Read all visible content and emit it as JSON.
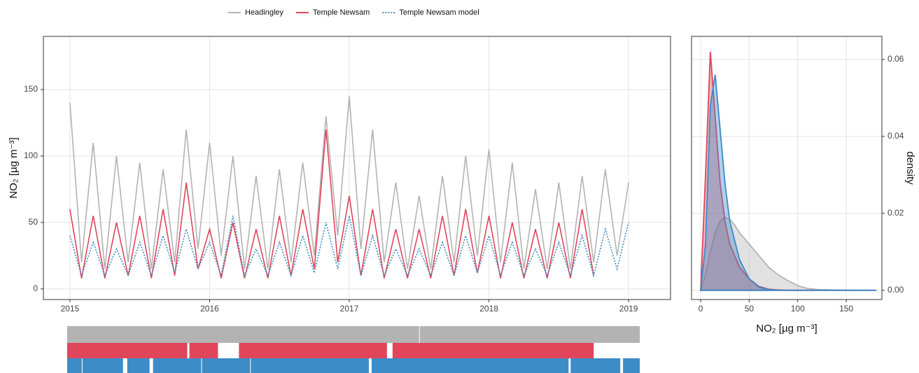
{
  "chart_data": [
    {
      "type": "line",
      "ylabel": "NO₂ [µg m⁻³]",
      "x": [
        2015,
        2015.083,
        2015.167,
        2015.25,
        2015.333,
        2015.417,
        2015.5,
        2015.583,
        2015.667,
        2015.75,
        2015.833,
        2015.917,
        2016,
        2016.083,
        2016.167,
        2016.25,
        2016.333,
        2016.417,
        2016.5,
        2016.583,
        2016.667,
        2016.75,
        2016.833,
        2016.917,
        2017,
        2017.083,
        2017.167,
        2017.25,
        2017.333,
        2017.417,
        2017.5,
        2017.583,
        2017.667,
        2017.75,
        2017.833,
        2017.917,
        2018,
        2018.083,
        2018.167,
        2018.25,
        2018.333,
        2018.417,
        2018.5,
        2018.583,
        2018.667,
        2018.75,
        2018.833,
        2018.917,
        2019
      ],
      "series": [
        {
          "name": "Headingley",
          "color": "#b3b3b3",
          "values": [
            140,
            20,
            110,
            15,
            100,
            20,
            95,
            15,
            90,
            20,
            120,
            30,
            110,
            25,
            100,
            15,
            85,
            15,
            90,
            20,
            95,
            25,
            130,
            40,
            145,
            30,
            120,
            20,
            80,
            15,
            70,
            15,
            85,
            20,
            100,
            25,
            105,
            20,
            95,
            15,
            75,
            15,
            80,
            15,
            85,
            20,
            90,
            25,
            80
          ]
        },
        {
          "name": "Temple Newsam",
          "color": "#e0455a",
          "values": [
            60,
            8,
            55,
            8,
            50,
            10,
            55,
            8,
            60,
            10,
            80,
            15,
            45,
            8,
            50,
            8,
            45,
            8,
            55,
            10,
            60,
            15,
            120,
            20,
            70,
            10,
            60,
            8,
            45,
            8,
            45,
            8,
            55,
            10,
            60,
            12,
            55,
            8,
            50,
            8,
            45,
            8,
            50,
            8,
            60,
            10,
            null,
            null,
            null
          ]
        },
        {
          "name": "Temple Newsam model",
          "color": "#3c8cc8",
          "dash": "dotted",
          "values": [
            40,
            10,
            35,
            10,
            30,
            10,
            35,
            10,
            40,
            12,
            45,
            15,
            35,
            10,
            55,
            10,
            30,
            10,
            35,
            10,
            40,
            12,
            50,
            15,
            55,
            10,
            40,
            10,
            30,
            10,
            30,
            10,
            35,
            10,
            40,
            12,
            40,
            10,
            35,
            10,
            30,
            10,
            35,
            10,
            40,
            10,
            45,
            15,
            50
          ]
        }
      ],
      "xlim": [
        2014.81,
        2019.3
      ],
      "xticks": [
        2015,
        2016,
        2017,
        2018,
        2019
      ],
      "ylim": [
        -8,
        190
      ],
      "yticks": [
        0,
        50,
        100,
        150
      ],
      "grid": true,
      "legend": "top"
    },
    {
      "type": "density",
      "xlabel": "NO₂ [µg m⁻³]",
      "y2label": "density",
      "x": [
        0,
        5,
        10,
        15,
        20,
        25,
        30,
        35,
        40,
        50,
        60,
        70,
        80,
        90,
        100,
        110,
        120,
        140,
        160,
        180
      ],
      "series": [
        {
          "color": "#b3b3b3",
          "values": [
            0,
            0.004,
            0.01,
            0.015,
            0.018,
            0.019,
            0.0185,
            0.017,
            0.015,
            0.012,
            0.009,
            0.006,
            0.004,
            0.0025,
            0.0012,
            0.0005,
            0.0002,
            5e-05,
            0,
            0
          ]
        },
        {
          "color": "#e0455a",
          "values": [
            0,
            0.03,
            0.062,
            0.045,
            0.028,
            0.018,
            0.012,
            0.009,
            0.006,
            0.003,
            0.001,
            0.0003,
            0.0001,
            0,
            0,
            0,
            0,
            0,
            0,
            0
          ]
        },
        {
          "color": "#3c8cc8",
          "values": [
            0,
            0.012,
            0.048,
            0.056,
            0.042,
            0.028,
            0.018,
            0.013,
            0.008,
            0.003,
            0.0008,
            0.0002,
            0,
            0,
            0,
            0,
            0,
            0,
            0,
            0
          ]
        }
      ],
      "xlim": [
        -9.4,
        186.7
      ],
      "xticks": [
        0,
        50,
        100,
        150
      ],
      "y2lim": [
        -0.0024,
        0.066
      ],
      "y2ticks": [
        {
          "value": 0,
          "label": "0.00"
        },
        {
          "value": 0.02,
          "label": "0.02"
        },
        {
          "value": 0.04,
          "label": "0.04"
        },
        {
          "value": 0.06,
          "label": "0.06"
        }
      ],
      "grid": true
    },
    {
      "type": "timeline",
      "rows": [
        {
          "color": "#b3b3b3",
          "segments": [
            [
              2014.98,
              2017.5
            ],
            [
              2017.505,
              2019.08
            ]
          ]
        },
        {
          "color": "#e0455a",
          "segments": [
            [
              2014.98,
              2015.84
            ],
            [
              2015.855,
              2016.06
            ],
            [
              2016.21,
              2017.27
            ],
            [
              2017.31,
              2018.75
            ]
          ]
        },
        {
          "color": "#3c8cc8",
          "segments": [
            [
              2014.98,
              2015.085
            ],
            [
              2015.09,
              2015.38
            ],
            [
              2015.41,
              2015.57
            ],
            [
              2015.595,
              2015.94
            ],
            [
              2015.945,
              2016.29
            ],
            [
              2016.295,
              2017.14
            ],
            [
              2017.16,
              2018.57
            ],
            [
              2018.585,
              2018.94
            ],
            [
              2018.96,
              2019.08
            ]
          ]
        }
      ]
    }
  ]
}
